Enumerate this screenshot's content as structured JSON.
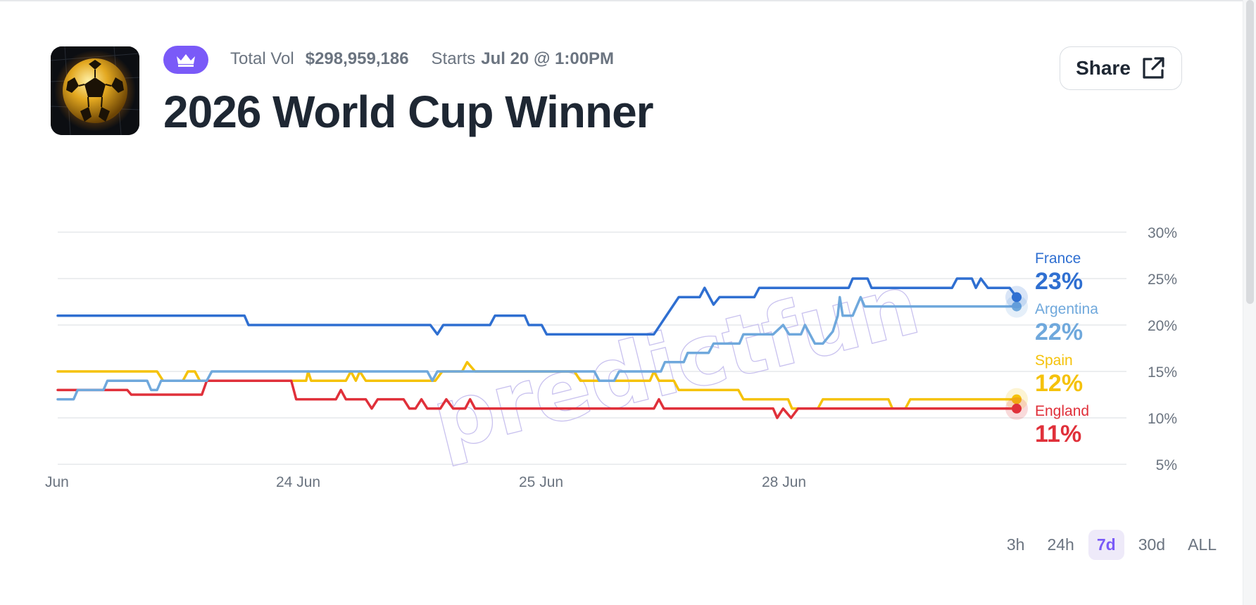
{
  "header": {
    "title": "2026 World Cup Winner",
    "total_vol_label": "Total Vol",
    "total_vol_value": "$298,959,186",
    "starts_label": "Starts",
    "starts_value": "Jul 20 @ 1:00PM",
    "share_label": "Share",
    "badge_icon": "crown-icon",
    "event_icon": "soccer-ball-icon"
  },
  "watermark": "predictfun",
  "timeframes": {
    "options": [
      "3h",
      "24h",
      "7d",
      "30d",
      "ALL"
    ],
    "selected": "7d"
  },
  "chart_data": {
    "type": "line",
    "x_ticks": [
      "Jun",
      "24 Jun",
      "25 Jun",
      "28 Jun"
    ],
    "y_ticks": [
      "30%",
      "25%",
      "20%",
      "15%",
      "10%",
      "5%"
    ],
    "ylim": [
      5,
      30
    ],
    "grid": true,
    "x_range": [
      0,
      1
    ],
    "series": [
      {
        "name": "France",
        "label": "23%",
        "last": 23,
        "color": "#2f6fd1",
        "points": [
          [
            0,
            21
          ],
          [
            0.188,
            21
          ],
          [
            0.192,
            20
          ],
          [
            0.375,
            20
          ],
          [
            0.382,
            19
          ],
          [
            0.388,
            20
          ],
          [
            0.435,
            20
          ],
          [
            0.44,
            21
          ],
          [
            0.47,
            21
          ],
          [
            0.474,
            20
          ],
          [
            0.487,
            20
          ],
          [
            0.492,
            19
          ],
          [
            0.6,
            19
          ],
          [
            0.625,
            23
          ],
          [
            0.646,
            23
          ],
          [
            0.651,
            24
          ],
          [
            0.66,
            22.2
          ],
          [
            0.666,
            23
          ],
          [
            0.701,
            23
          ],
          [
            0.706,
            24
          ],
          [
            0.796,
            24
          ],
          [
            0.8,
            25
          ],
          [
            0.815,
            25
          ],
          [
            0.819,
            24
          ],
          [
            0.9,
            24
          ],
          [
            0.905,
            25
          ],
          [
            0.92,
            25
          ],
          [
            0.924,
            24
          ],
          [
            0.929,
            25
          ],
          [
            0.936,
            24
          ],
          [
            0.958,
            24
          ],
          [
            0.965,
            23
          ]
        ]
      },
      {
        "name": "Argentina",
        "label": "22%",
        "last": 22,
        "color": "#6fa8dc",
        "points": [
          [
            0,
            12
          ],
          [
            0.016,
            12
          ],
          [
            0.02,
            13
          ],
          [
            0.046,
            13
          ],
          [
            0.05,
            14
          ],
          [
            0.09,
            14
          ],
          [
            0.094,
            13
          ],
          [
            0.1,
            13
          ],
          [
            0.104,
            14
          ],
          [
            0.15,
            14
          ],
          [
            0.155,
            15
          ],
          [
            0.372,
            15
          ],
          [
            0.377,
            14
          ],
          [
            0.382,
            15
          ],
          [
            0.54,
            15
          ],
          [
            0.545,
            14
          ],
          [
            0.56,
            14
          ],
          [
            0.565,
            15
          ],
          [
            0.607,
            15
          ],
          [
            0.611,
            16
          ],
          [
            0.63,
            16
          ],
          [
            0.634,
            17
          ],
          [
            0.655,
            17
          ],
          [
            0.66,
            18
          ],
          [
            0.686,
            18
          ],
          [
            0.69,
            19
          ],
          [
            0.72,
            19
          ],
          [
            0.73,
            20
          ],
          [
            0.736,
            19
          ],
          [
            0.748,
            19
          ],
          [
            0.752,
            20
          ],
          [
            0.757,
            19
          ],
          [
            0.762,
            18
          ],
          [
            0.77,
            18
          ],
          [
            0.78,
            19.3
          ],
          [
            0.785,
            21
          ],
          [
            0.787,
            23
          ],
          [
            0.79,
            21
          ],
          [
            0.8,
            21
          ],
          [
            0.808,
            23
          ],
          [
            0.812,
            22
          ],
          [
            0.965,
            22
          ]
        ]
      },
      {
        "name": "Spain",
        "label": "12%",
        "last": 12,
        "color": "#f5c20a",
        "points": [
          [
            0,
            15
          ],
          [
            0.1,
            15
          ],
          [
            0.106,
            14
          ],
          [
            0.126,
            14
          ],
          [
            0.131,
            15
          ],
          [
            0.138,
            15
          ],
          [
            0.143,
            14
          ],
          [
            0.25,
            14
          ],
          [
            0.252,
            15
          ],
          [
            0.255,
            14
          ],
          [
            0.29,
            14
          ],
          [
            0.295,
            15
          ],
          [
            0.3,
            14
          ],
          [
            0.304,
            15
          ],
          [
            0.31,
            14
          ],
          [
            0.38,
            14
          ],
          [
            0.387,
            15
          ],
          [
            0.407,
            15
          ],
          [
            0.412,
            16
          ],
          [
            0.42,
            15
          ],
          [
            0.52,
            15
          ],
          [
            0.526,
            14
          ],
          [
            0.596,
            14
          ],
          [
            0.6,
            15
          ],
          [
            0.605,
            14
          ],
          [
            0.62,
            14
          ],
          [
            0.625,
            13
          ],
          [
            0.685,
            13
          ],
          [
            0.69,
            12
          ],
          [
            0.735,
            12
          ],
          [
            0.739,
            11
          ],
          [
            0.765,
            11
          ],
          [
            0.77,
            12
          ],
          [
            0.836,
            12
          ],
          [
            0.84,
            11
          ],
          [
            0.853,
            11
          ],
          [
            0.858,
            12
          ],
          [
            0.965,
            12
          ]
        ]
      },
      {
        "name": "England",
        "label": "11%",
        "last": 11,
        "color": "#e0303a",
        "points": [
          [
            0,
            13
          ],
          [
            0.07,
            13
          ],
          [
            0.074,
            12.5
          ],
          [
            0.145,
            12.5
          ],
          [
            0.15,
            14
          ],
          [
            0.235,
            14
          ],
          [
            0.24,
            12
          ],
          [
            0.28,
            12
          ],
          [
            0.285,
            13
          ],
          [
            0.29,
            12
          ],
          [
            0.31,
            12
          ],
          [
            0.316,
            11
          ],
          [
            0.322,
            12
          ],
          [
            0.348,
            12
          ],
          [
            0.354,
            11
          ],
          [
            0.36,
            11
          ],
          [
            0.366,
            12
          ],
          [
            0.372,
            11
          ],
          [
            0.385,
            11
          ],
          [
            0.391,
            12
          ],
          [
            0.398,
            11
          ],
          [
            0.41,
            11
          ],
          [
            0.415,
            12
          ],
          [
            0.42,
            11
          ],
          [
            0.6,
            11
          ],
          [
            0.605,
            12
          ],
          [
            0.61,
            11
          ],
          [
            0.72,
            11
          ],
          [
            0.724,
            10
          ],
          [
            0.73,
            11
          ],
          [
            0.738,
            10
          ],
          [
            0.745,
            11
          ],
          [
            0.965,
            11
          ]
        ]
      }
    ]
  }
}
